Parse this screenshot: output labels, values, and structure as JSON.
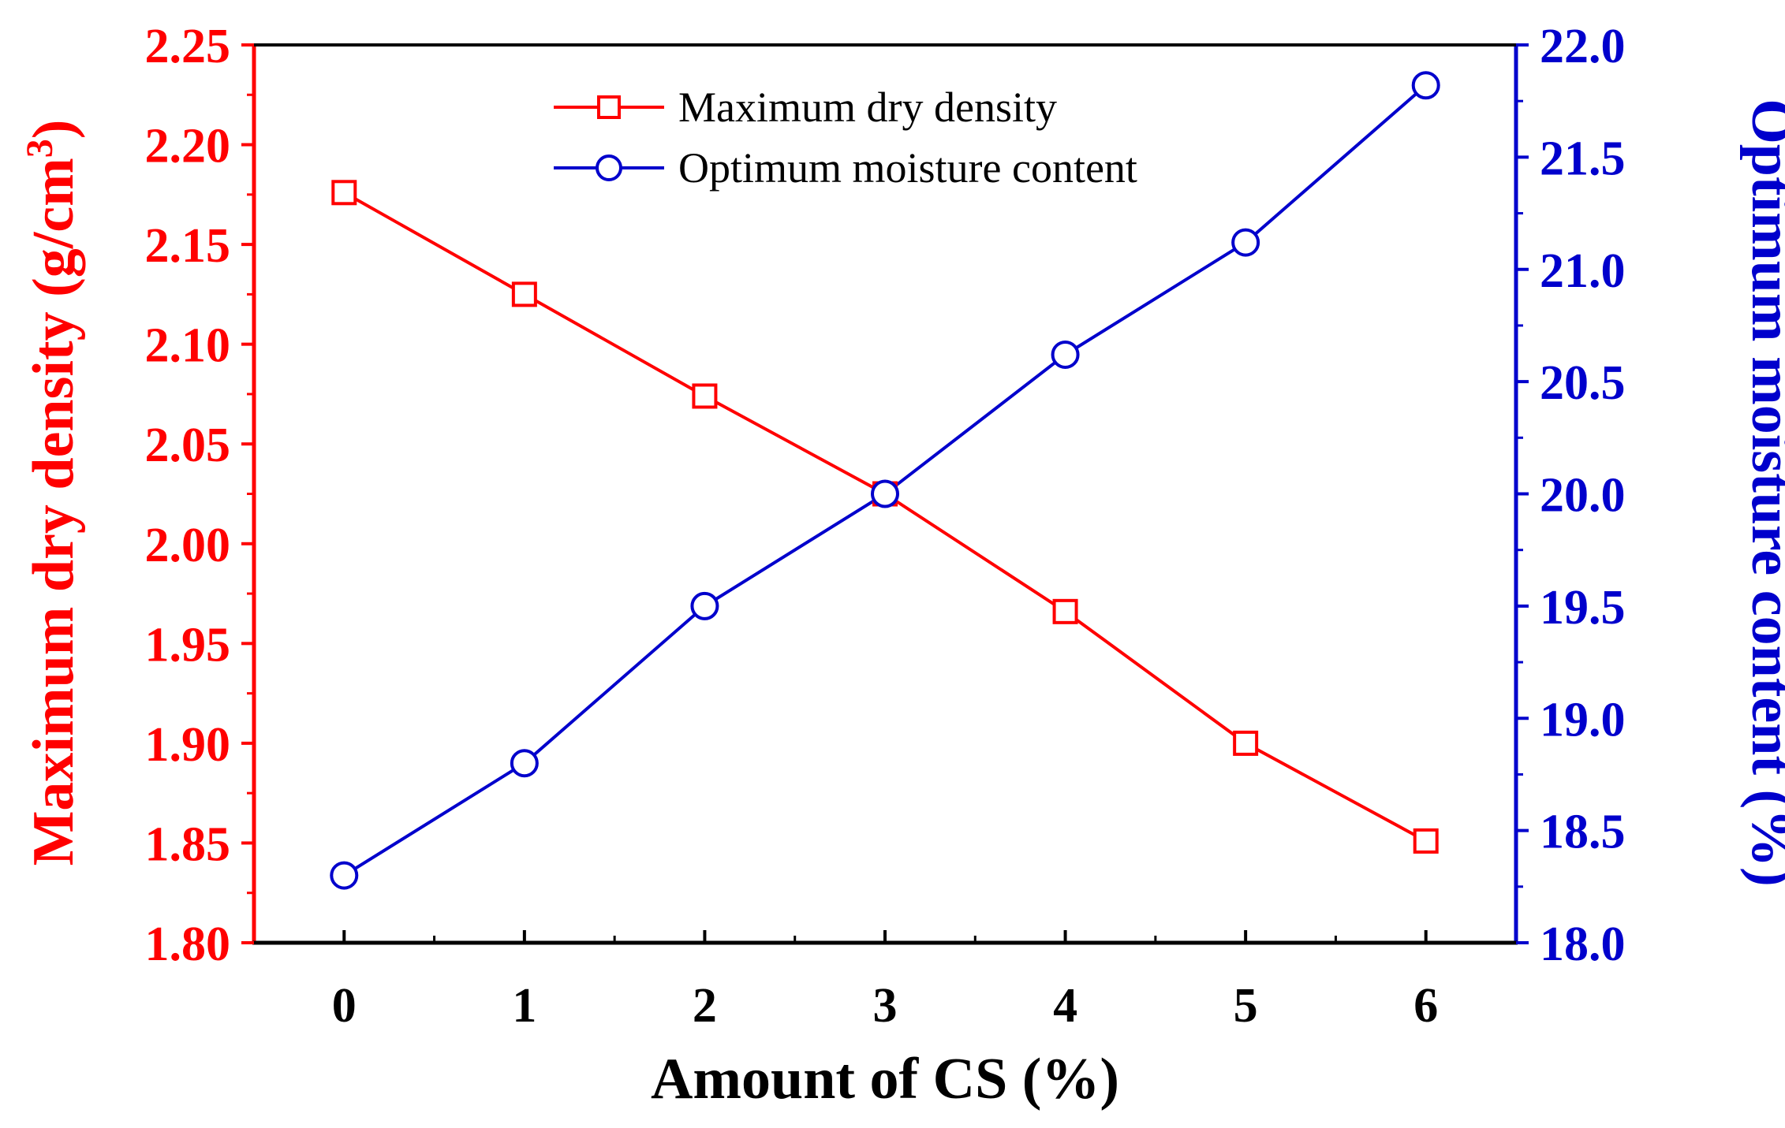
{
  "chart_data": {
    "type": "line",
    "x": [
      0,
      1,
      2,
      3,
      4,
      5,
      6
    ],
    "xlabel": "Amount of CS (%)",
    "xlim": [
      -0.5,
      6.5
    ],
    "xticks": [
      "0",
      "1",
      "2",
      "3",
      "4",
      "5",
      "6"
    ],
    "ylabel_left": "Maximum dry density (g/cm",
    "ylabel_left_sup": "3",
    "ylabel_left_end": ")",
    "ylim_left": [
      1.8,
      2.25
    ],
    "yticks_left": [
      "1.80",
      "1.85",
      "1.90",
      "1.95",
      "2.00",
      "2.05",
      "2.10",
      "2.15",
      "2.20",
      "2.25"
    ],
    "ylabel_right": "Optimum moisture content (%)",
    "ylim_right": [
      18.0,
      22.0
    ],
    "yticks_right": [
      "18.0",
      "18.5",
      "19.0",
      "19.5",
      "20.0",
      "20.5",
      "21.0",
      "21.5",
      "22.0"
    ],
    "legend_position": "top-center",
    "series": [
      {
        "name": "Maximum dry density",
        "axis": "left",
        "marker": "square",
        "color": "#ff0000",
        "values": [
          2.176,
          2.125,
          2.074,
          2.025,
          1.966,
          1.9,
          1.851
        ]
      },
      {
        "name": "Optimum moisture content",
        "axis": "right",
        "marker": "circle",
        "color": "#0000cc",
        "values": [
          18.3,
          18.8,
          19.5,
          20.0,
          20.62,
          21.12,
          21.82
        ]
      }
    ]
  }
}
